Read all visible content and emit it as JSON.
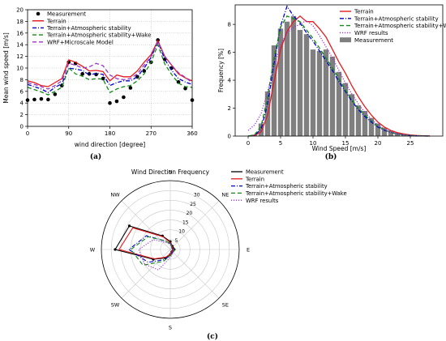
{
  "panels": {
    "a": "(a)",
    "b": "(b)",
    "c": "(c)"
  },
  "colors": {
    "measurement": "#000000",
    "terrain": "#e41a1c",
    "terrain_stab": "#0000cc",
    "terrain_stab_wake": "#138a13",
    "wrf": "#9933cc",
    "bars": "#7f7f7f"
  },
  "chart_data": [
    {
      "type": "line",
      "xlabel": "wind direction [degree]",
      "ylabel": "Mean wind speed [m/s]",
      "xlim": [
        0,
        360
      ],
      "ylim": [
        0,
        20
      ],
      "xticks": [
        0,
        90,
        180,
        270,
        360
      ],
      "yticks": [
        0,
        2,
        4,
        6,
        8,
        10,
        12,
        14,
        16,
        18,
        20
      ],
      "legend_position": "top-left",
      "x": [
        0,
        15,
        30,
        45,
        60,
        75,
        90,
        105,
        120,
        135,
        150,
        165,
        180,
        195,
        210,
        225,
        240,
        255,
        270,
        285,
        300,
        315,
        330,
        345,
        360
      ],
      "series": [
        {
          "name": "Measurement",
          "style": "markers",
          "values": [
            4.5,
            4.6,
            4.7,
            4.6,
            5.5,
            7.0,
            11.0,
            10.8,
            9.0,
            9.0,
            8.9,
            8.2,
            4.0,
            4.3,
            5.0,
            6.6,
            8.5,
            9.5,
            11.0,
            14.8,
            11.5,
            10.0,
            7.6,
            6.5,
            4.5
          ]
        },
        {
          "name": "Terrain",
          "style": "solid",
          "values": [
            7.8,
            7.5,
            7.0,
            6.8,
            7.5,
            8.2,
            11.4,
            11.0,
            10.3,
            9.5,
            9.6,
            9.4,
            7.8,
            8.8,
            8.5,
            8.5,
            9.5,
            11.0,
            12.3,
            14.7,
            12.0,
            10.5,
            9.0,
            8.3,
            7.8
          ]
        },
        {
          "name": "Terrain+Atmospheric stability",
          "style": "dashdot",
          "values": [
            7.2,
            6.8,
            6.4,
            5.8,
            6.7,
            7.3,
            10.0,
            9.8,
            9.6,
            8.8,
            9.1,
            8.9,
            7.0,
            7.5,
            7.8,
            7.8,
            8.5,
            10.0,
            11.8,
            14.5,
            11.5,
            9.6,
            8.2,
            7.6,
            7.2
          ]
        },
        {
          "name": "Terrain+Atmospheric stability+Wake",
          "style": "dashed",
          "values": [
            6.7,
            6.3,
            5.9,
            5.4,
            6.0,
            6.7,
            10.0,
            9.0,
            8.6,
            8.0,
            8.2,
            8.1,
            5.8,
            6.4,
            6.8,
            7.0,
            7.8,
            9.0,
            11.0,
            14.0,
            10.7,
            8.9,
            7.4,
            6.8,
            6.7
          ]
        },
        {
          "name": "WRF+Microscale Model",
          "style": "dashed",
          "values": [
            7.5,
            7.2,
            6.8,
            6.4,
            7.0,
            7.8,
            10.8,
            10.5,
            10.0,
            10.2,
            10.8,
            10.4,
            8.8,
            8.2,
            8.0,
            8.2,
            9.0,
            10.5,
            12.0,
            14.5,
            12.0,
            10.5,
            9.2,
            8.4,
            7.5
          ]
        }
      ]
    },
    {
      "type": "bar",
      "xlabel": "Wind Speed [m/s]",
      "ylabel": "Frequency [%]",
      "xlim": [
        -2,
        30
      ],
      "ylim": [
        0,
        9.4
      ],
      "xticks": [
        0,
        5,
        10,
        15,
        20,
        25
      ],
      "yticks": [
        0,
        2,
        4,
        6,
        8
      ],
      "legend_position": "top-right",
      "bar_series_name": "Measurement",
      "bar_width": 0.8,
      "bar_x": [
        1,
        2,
        3,
        4,
        5,
        6,
        7,
        8,
        9,
        10,
        11,
        12,
        13,
        14,
        15,
        16,
        17,
        18,
        19,
        20,
        21,
        22,
        23,
        24,
        25,
        26,
        27
      ],
      "bar_values": [
        0.1,
        0.9,
        3.2,
        6.5,
        7.7,
        8.2,
        8.6,
        7.6,
        7.3,
        6.2,
        6.1,
        6.2,
        5.7,
        4.6,
        3.8,
        3.0,
        2.2,
        1.8,
        1.3,
        0.9,
        0.6,
        0.4,
        0.25,
        0.15,
        0.1,
        0.06,
        0.03
      ],
      "curve_x": [
        0,
        1,
        2,
        3,
        4,
        5,
        6,
        7,
        8,
        9,
        10,
        11,
        12,
        13,
        14,
        15,
        16,
        17,
        18,
        19,
        20,
        21,
        22,
        23,
        24,
        25,
        26,
        27,
        28
      ],
      "series": [
        {
          "name": "Terrain",
          "style": "solid",
          "values": [
            0.0,
            0.05,
            0.3,
            1.5,
            3.9,
            6.2,
            7.5,
            8.2,
            8.6,
            8.2,
            8.2,
            7.7,
            7.1,
            6.2,
            5.3,
            4.5,
            3.6,
            2.8,
            2.1,
            1.5,
            1.0,
            0.65,
            0.4,
            0.25,
            0.15,
            0.08,
            0.04,
            0.02,
            0.01
          ]
        },
        {
          "name": "Terrain+Atmospheric stability",
          "style": "dashdot",
          "values": [
            0.0,
            0.05,
            0.5,
            2.3,
            5.2,
            7.9,
            9.3,
            8.6,
            8.1,
            7.4,
            6.8,
            6.1,
            5.4,
            4.7,
            3.9,
            3.2,
            2.5,
            1.9,
            1.4,
            1.0,
            0.65,
            0.42,
            0.26,
            0.15,
            0.08,
            0.04,
            0.02,
            0.01,
            0.0
          ]
        },
        {
          "name": "Terrain+Atmospheric stability+Wake",
          "style": "dashed",
          "values": [
            0.0,
            0.1,
            0.7,
            2.8,
            5.6,
            7.8,
            8.6,
            8.4,
            8.2,
            7.6,
            7.0,
            6.3,
            5.6,
            4.9,
            4.1,
            3.3,
            2.6,
            2.0,
            1.5,
            1.1,
            0.7,
            0.45,
            0.28,
            0.16,
            0.09,
            0.05,
            0.02,
            0.01,
            0.0
          ]
        },
        {
          "name": "WRF results",
          "style": "dotted",
          "values": [
            0.4,
            0.8,
            1.6,
            3.2,
            5.0,
            6.5,
            7.4,
            7.8,
            8.0,
            8.3,
            7.9,
            7.2,
            6.4,
            5.6,
            4.7,
            3.8,
            3.0,
            2.3,
            1.7,
            1.2,
            0.8,
            0.5,
            0.3,
            0.18,
            0.1,
            0.05,
            0.02,
            0.01,
            0.0
          ]
        }
      ]
    },
    {
      "type": "line",
      "subtype": "polar",
      "title": "Wind Direction Frequency",
      "rlim": [
        0,
        35
      ],
      "rticks": [
        5,
        10,
        15,
        20,
        25,
        30
      ],
      "compass": [
        "N",
        "NE",
        "E",
        "SE",
        "S",
        "SW",
        "W",
        "NW"
      ],
      "legend_position": "top-right",
      "theta": [
        0,
        30,
        60,
        90,
        120,
        150,
        180,
        210,
        240,
        270,
        300,
        330
      ],
      "series": [
        {
          "name": "Measurement",
          "style": "solid",
          "values": [
            4,
            2,
            1.5,
            2,
            1.5,
            1.5,
            2.5,
            5,
            10,
            28,
            24,
            8
          ]
        },
        {
          "name": "Terrain",
          "style": "solid",
          "values": [
            3.5,
            1.8,
            1.4,
            1.8,
            1.4,
            1.4,
            2.3,
            4.5,
            9.5,
            26,
            22,
            7.5
          ]
        },
        {
          "name": "Terrain+Atmospheric stability",
          "style": "dashdot",
          "values": [
            3,
            1.5,
            1.5,
            1.8,
            1.8,
            1.8,
            3,
            6,
            13,
            21,
            14,
            5
          ]
        },
        {
          "name": "Terrain+Atmospheric stability+Wake",
          "style": "dashed",
          "values": [
            3,
            1.5,
            1.5,
            2,
            2,
            2,
            3,
            7,
            16,
            20,
            13,
            5
          ]
        },
        {
          "name": "WRF results",
          "style": "dotted",
          "values": [
            2.5,
            1.2,
            1.0,
            1.2,
            1.5,
            2.5,
            4,
            12,
            15,
            16,
            10,
            4
          ]
        }
      ]
    }
  ]
}
